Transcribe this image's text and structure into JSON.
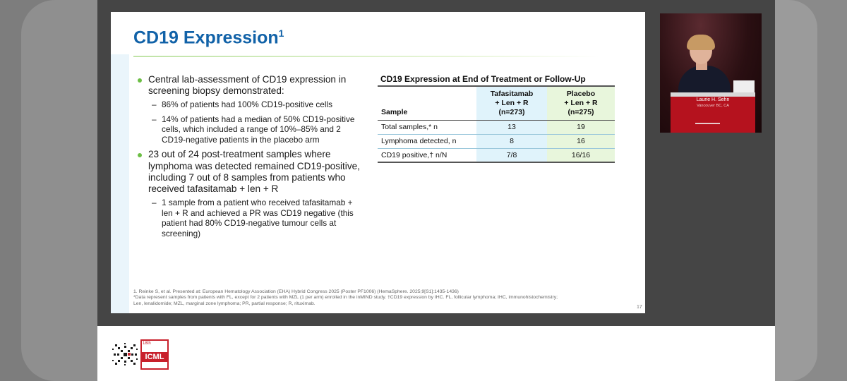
{
  "slide": {
    "title": "CD19 Expression",
    "title_sup": "1",
    "bullets": [
      {
        "text": "Central lab-assessment of CD19 expression in screening biopsy demonstrated:",
        "subs": [
          "86% of patients had 100% CD19-positive cells",
          "14% of patients had a median of 50% CD19-positive cells, which included a range of 10%–85% and 2 CD19-negative patients in the placebo arm"
        ]
      },
      {
        "text": "23 out of 24 post-treatment samples where lymphoma was detected remained CD19-positive, including 7 out of 8 samples from patients who received tafasitamab + len + R",
        "subs": [
          "1 sample from a patient who received tafasitamab + len + R and achieved a PR was CD19 negative (this patient had 80% CD19-negative tumour cells at screening)"
        ]
      }
    ],
    "dash": "–",
    "table": {
      "title": "CD19 Expression at End of Treatment or Follow-Up",
      "header": {
        "sample": "Sample",
        "arm1": [
          "Tafasitamab",
          "+ Len + R",
          "(n=273)"
        ],
        "arm2": [
          "Placebo",
          "+ Len + R",
          "(n=275)"
        ]
      },
      "rows": [
        {
          "label": "Total samples,* n",
          "arm1": "13",
          "arm2": "19"
        },
        {
          "label": "Lymphoma detected, n",
          "arm1": "8",
          "arm2": "16"
        },
        {
          "label": "CD19 positive,† n/N",
          "arm1": "7/8",
          "arm2": "16/16"
        }
      ]
    },
    "refs": [
      "1. Reinke S, et al. Presented at: European Hematology Association (EHA) Hybrid Congress 2025 (Poster PF1006) (HemaSphere. 2025;9[S1]:1435-1436)",
      "*Data represent samples from patients with FL, except for 2 patients with MZL (1 per arm) enrolled in the inMIND study. †CD19 expression by IHC. FL, follicular lymphoma; IHC, immunohistochemistry;",
      "Len, lenalidomide; MZL, marginal zone lymphoma; PR, partial response; R, rituximab."
    ],
    "page_number": "17"
  },
  "speaker": {
    "name": "Laurie H. Sehn",
    "location": "Vancouver BC, CA"
  },
  "logo": {
    "edition": "18th",
    "name": "ICML"
  },
  "colors": {
    "title_blue": "#1162a8",
    "bullet_green": "#6cbe45",
    "logo_red": "#c8202b",
    "podium_red": "#b5121e"
  }
}
